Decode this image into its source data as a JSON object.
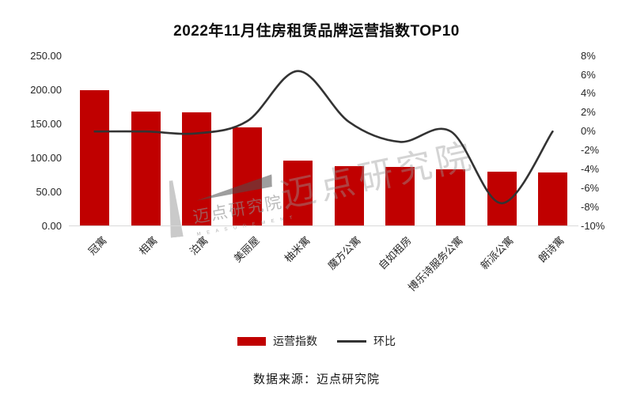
{
  "title": "2022年11月住房租赁品牌运营指数TOP10",
  "source": "数据来源：迈点研究院",
  "watermark": {
    "main": "迈点研究院",
    "small": "迈点研究院",
    "letters": "M E A S U R E M E N T"
  },
  "colors": {
    "bar": "#c00000",
    "line": "#333333",
    "axis_line": "#d9d9d9",
    "text": "#262626"
  },
  "chart_data": {
    "type": "bar",
    "subtype": "combo-bar-line",
    "title": "2022年11月住房租赁品牌运营指数TOP10",
    "categories": [
      "冠寓",
      "相寓",
      "泊寓",
      "美丽屋",
      "柚米寓",
      "魔方公寓",
      "自如租房",
      "博乐诗服务公寓",
      "新派公寓",
      "朗诗寓"
    ],
    "series": [
      {
        "name": "运营指数",
        "type": "bar",
        "axis": "left",
        "color": "#c00000",
        "values": [
          200,
          168,
          167,
          145,
          96,
          88,
          87,
          83,
          80,
          79
        ]
      },
      {
        "name": "环比",
        "type": "line",
        "axis": "right",
        "color": "#333333",
        "unit": "%",
        "values": [
          0,
          0,
          -0.2,
          1.1,
          6.4,
          1.0,
          -1.1,
          0,
          -7.6,
          0
        ]
      }
    ],
    "left_axis": {
      "min": 0,
      "max": 250,
      "step": 50,
      "tick_labels": [
        "250.00",
        "200.00",
        "150.00",
        "100.00",
        "50.00",
        "0.00"
      ]
    },
    "right_axis": {
      "min": -10,
      "max": 8,
      "step": 2,
      "tick_labels": [
        "8%",
        "6%",
        "4%",
        "2%",
        "0%",
        "-2%",
        "-4%",
        "-6%",
        "-8%",
        "-10%"
      ]
    },
    "legend_position": "bottom",
    "grid": false,
    "xlabel": "",
    "ylabel": ""
  }
}
